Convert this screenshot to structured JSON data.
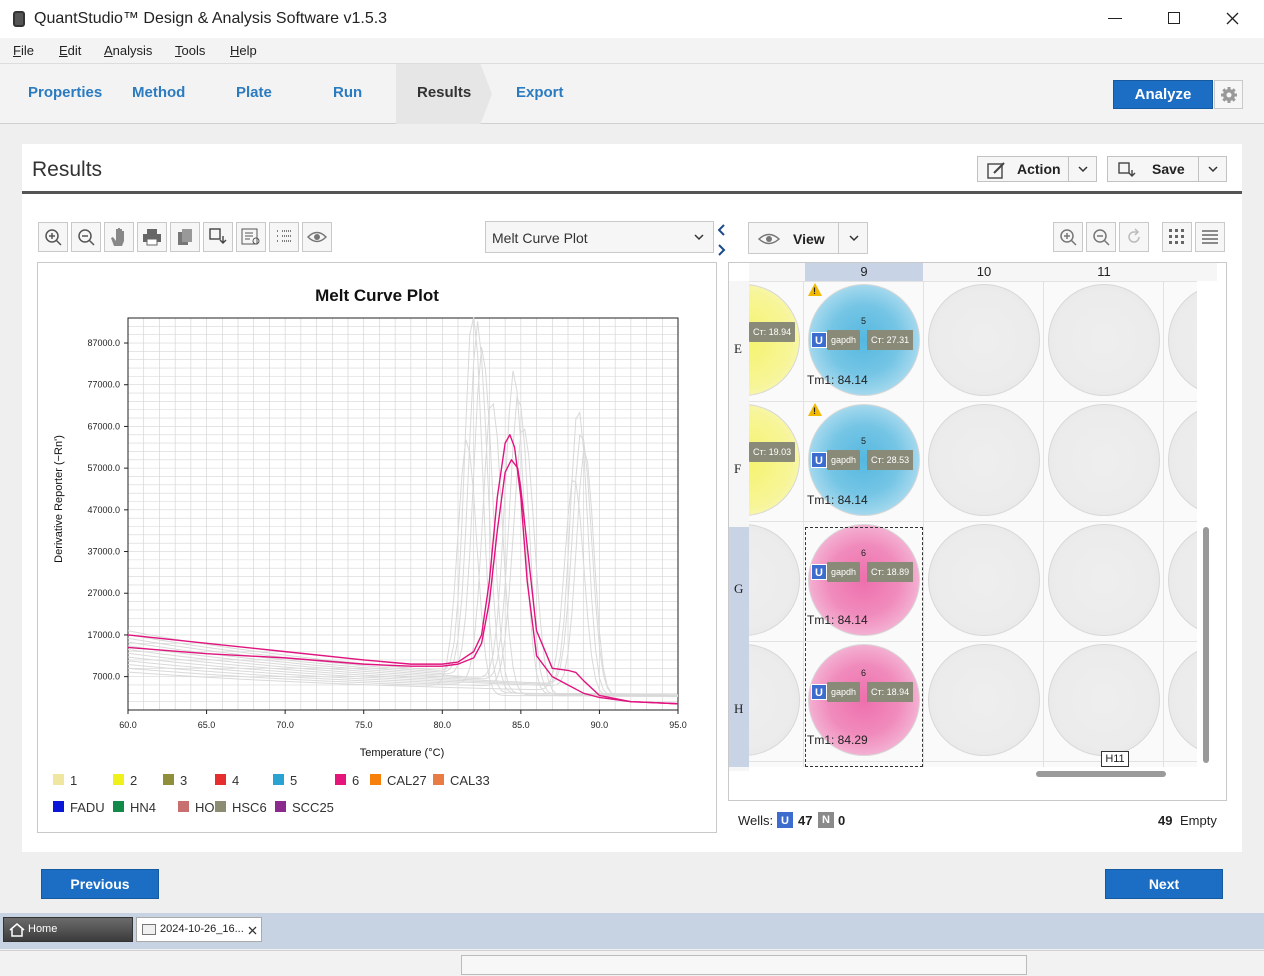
{
  "window": {
    "title": "QuantStudio™ Design & Analysis Software v1.5.3"
  },
  "menu": [
    "File",
    "Edit",
    "Analysis",
    "Tools",
    "Help"
  ],
  "nav": {
    "tabs": [
      "Properties",
      "Method",
      "Plate",
      "Run",
      "Results",
      "Export"
    ],
    "active": "Results",
    "analyze_label": "Analyze"
  },
  "results": {
    "title": "Results",
    "action_label": "Action",
    "save_label": "Save"
  },
  "plot": {
    "selector_value": "Melt Curve Plot",
    "chart_title": "Melt Curve Plot"
  },
  "chart_data": {
    "type": "line",
    "title": "Melt Curve Plot",
    "xlabel": "Temperature (°C)",
    "ylabel": "Derivative Reporter (−Rn')",
    "xlim": [
      60,
      95
    ],
    "ylim": [
      -1000,
      93000
    ],
    "x_ticks": [
      "60.0",
      "65.0",
      "70.0",
      "75.0",
      "80.0",
      "85.0",
      "90.0",
      "95.0"
    ],
    "y_ticks": [
      "7000.0",
      "17000.0",
      "27000.0",
      "37000.0",
      "47000.0",
      "57000.0",
      "67000.0",
      "77000.0",
      "87000.0"
    ],
    "grid": true,
    "series": [
      {
        "name": "6",
        "color": "#e0147e",
        "x": [
          60,
          65,
          70,
          75,
          78,
          80,
          81,
          82,
          82.5,
          83,
          83.5,
          84,
          84.3,
          84.6,
          85,
          85.4,
          86,
          87,
          88,
          89,
          90,
          92,
          95
        ],
        "y": [
          17000,
          15000,
          13000,
          11000,
          10000,
          10000,
          10500,
          13000,
          17000,
          30000,
          50000,
          63000,
          65000,
          62000,
          50000,
          30000,
          12000,
          7000,
          5000,
          3000,
          2000,
          1000,
          500
        ]
      },
      {
        "name": "6",
        "color": "#e0147e",
        "x": [
          60,
          65,
          70,
          75,
          78,
          80,
          81,
          82,
          82.5,
          83,
          83.5,
          84,
          84.4,
          84.8,
          85,
          85.5,
          86,
          87,
          88,
          88.5,
          89,
          90,
          92,
          95
        ],
        "y": [
          14000,
          12500,
          11500,
          10000,
          9500,
          9500,
          10000,
          11500,
          15000,
          25000,
          42000,
          56000,
          59000,
          57000,
          52000,
          35000,
          18000,
          9000,
          8500,
          8000,
          6000,
          2500,
          1000,
          500
        ]
      }
    ]
  },
  "legend": [
    {
      "label": "1",
      "color": "#f0e6a0"
    },
    {
      "label": "2",
      "color": "#f0f01a"
    },
    {
      "label": "3",
      "color": "#8f8f3b"
    },
    {
      "label": "4",
      "color": "#e62e2e"
    },
    {
      "label": "5",
      "color": "#2aa3d3"
    },
    {
      "label": "6",
      "color": "#e6157c"
    },
    {
      "label": "CAL27",
      "color": "#f77f0b"
    },
    {
      "label": "CAL33",
      "color": "#e97c45"
    },
    {
      "label": "FADU",
      "color": "#0a16d8"
    },
    {
      "label": "HN4",
      "color": "#118a4a"
    },
    {
      "label": "HOK",
      "color": "#c87070"
    },
    {
      "label": "HSC6",
      "color": "#8c8c72"
    },
    {
      "label": "SCC25",
      "color": "#8a2a8c"
    }
  ],
  "plate": {
    "view_label": "View",
    "columns": [
      "9",
      "10",
      "11"
    ],
    "rows": [
      "E",
      "F",
      "G",
      "H"
    ],
    "partial_left": [
      {
        "ct": "Cᴛ: 18.94"
      },
      {
        "ct": "Cᴛ: 19.03"
      }
    ],
    "wells": [
      {
        "row": "E",
        "sample": "5",
        "target": "gapdh",
        "ct": "Cᴛ: 27.31",
        "tm": "Tm1: 84.14",
        "warning": true,
        "color": "#54b8e0"
      },
      {
        "row": "F",
        "sample": "5",
        "target": "gapdh",
        "ct": "Cᴛ: 28.53",
        "tm": "Tm1: 84.14",
        "warning": true,
        "color": "#54b8e0"
      },
      {
        "row": "G",
        "sample": "6",
        "target": "gapdh",
        "ct": "Cᴛ: 18.89",
        "tm": "Tm1: 84.14",
        "warning": false,
        "color": "#ee6fad"
      },
      {
        "row": "H",
        "sample": "6",
        "target": "gapdh",
        "ct": "Cᴛ: 18.94",
        "tm": "Tm1: 84.29",
        "warning": false,
        "color": "#ee6fad"
      }
    ],
    "tooltip": "H11",
    "wells_label": "Wells:",
    "u_badge": "U",
    "n_badge": "N",
    "u_count": "47",
    "n_count": "0",
    "empty_count": "49",
    "empty_label": "Empty"
  },
  "footer": {
    "previous_label": "Previous",
    "next_label": "Next"
  },
  "taskbar": {
    "home_label": "Home",
    "tab_label": "2024-10-26_16..."
  }
}
